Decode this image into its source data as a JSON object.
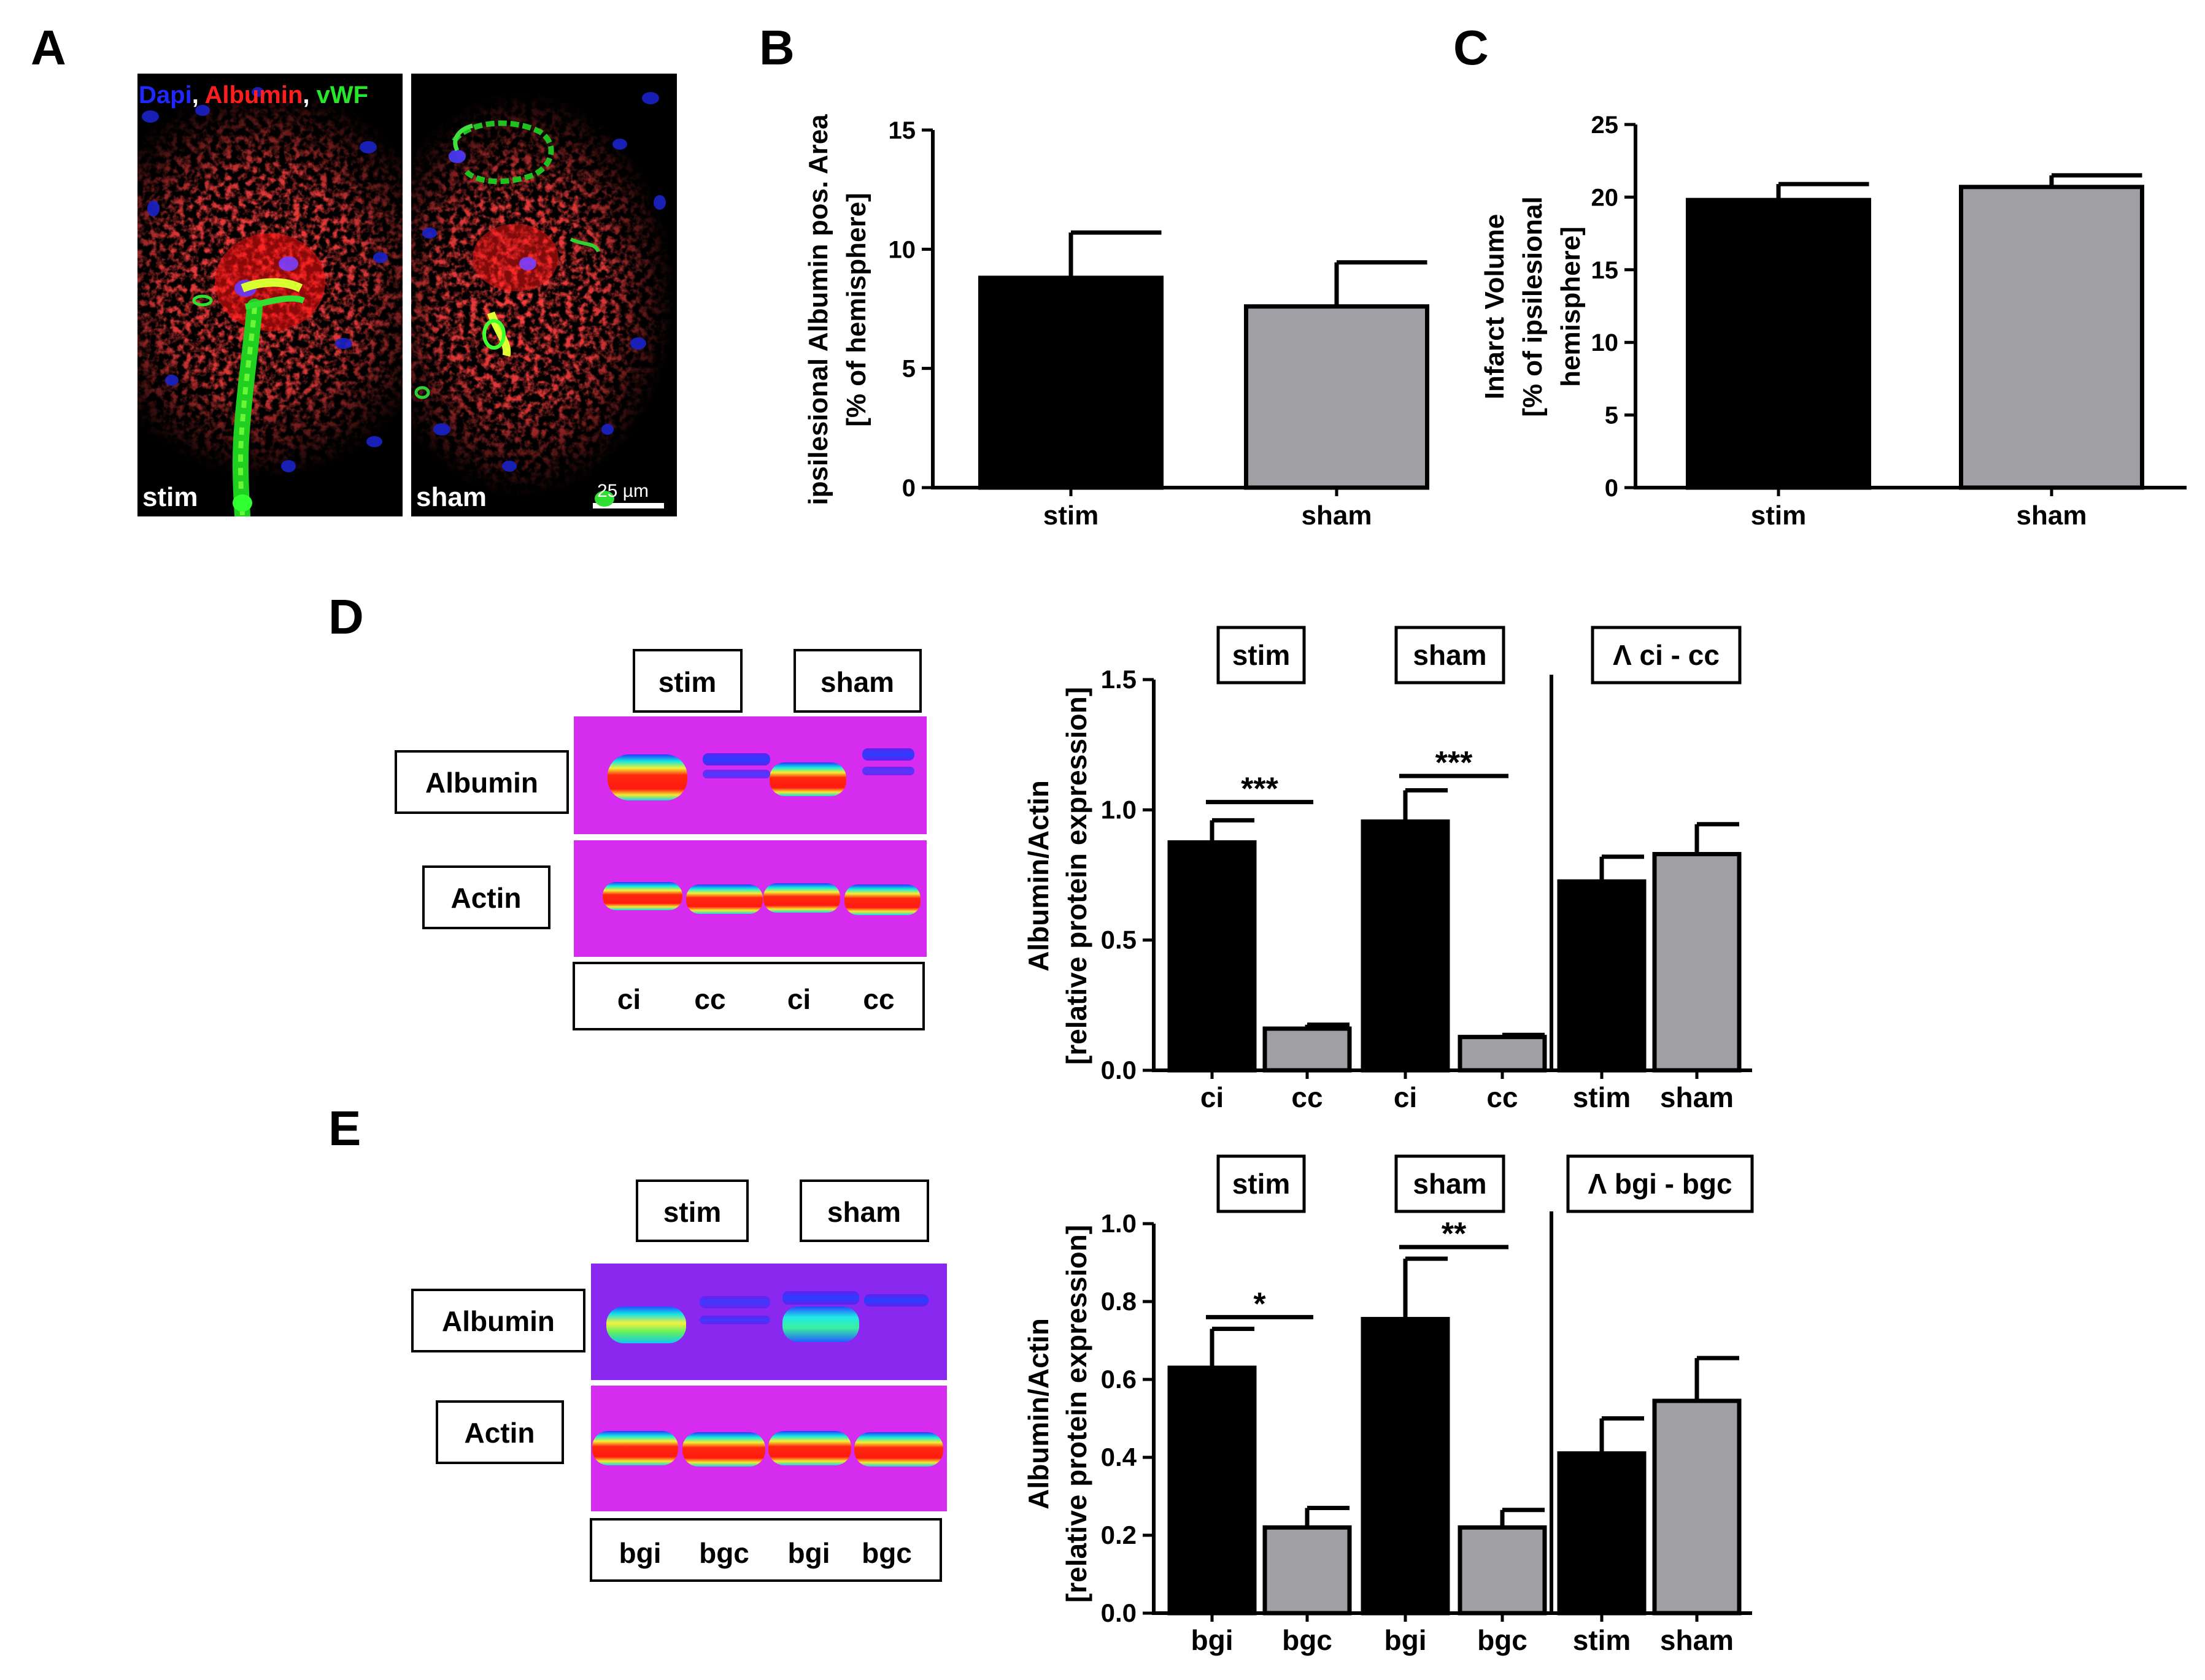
{
  "panel_letters": {
    "A": "A",
    "B": "B",
    "C": "C",
    "D": "D",
    "E": "E"
  },
  "panelA": {
    "legend": [
      {
        "text": "Dapi",
        "color": "#1e28ff"
      },
      {
        "text": ",",
        "color": "#ffffff"
      },
      {
        "text": " Albumin",
        "color": "#ff1e1e"
      },
      {
        "text": ",",
        "color": "#ffffff"
      },
      {
        "text": " vWF",
        "color": "#28e628"
      }
    ],
    "left_label": "stim",
    "right_label": "sham",
    "scale_bar": "25 µm"
  },
  "blotD": {
    "groups": [
      "stim",
      "sham"
    ],
    "rows": [
      "Albumin",
      "Actin"
    ],
    "lanes": [
      "ci",
      "cc",
      "ci",
      "cc"
    ]
  },
  "blotE": {
    "groups": [
      "stim",
      "sham"
    ],
    "rows": [
      "Albumin",
      "Actin"
    ],
    "lanes": [
      "bgi",
      "bgc",
      "bgi",
      "bgc"
    ]
  },
  "chart_data": [
    {
      "id": "B",
      "type": "bar",
      "categories": [
        "stim",
        "sham"
      ],
      "values": [
        8.8,
        7.6
      ],
      "errors": [
        1.9,
        1.85
      ],
      "colors": [
        "#000000",
        "#a0a0a4"
      ],
      "ylabel_lines": [
        "ipsilesional Albumin pos. Area",
        "[% of hemisphere]"
      ],
      "ylim": [
        0,
        15
      ],
      "yticks": [
        0,
        5,
        10,
        15
      ],
      "yticklabels": [
        "0",
        "5",
        "10",
        "15"
      ]
    },
    {
      "id": "C",
      "type": "bar",
      "categories": [
        "stim",
        "sham"
      ],
      "values": [
        19.8,
        20.7
      ],
      "errors": [
        1.1,
        0.8
      ],
      "colors": [
        "#000000",
        "#a0a0a4"
      ],
      "ylabel_lines": [
        "Infarct Volume",
        "[% of ipsilesional",
        "hemisphere]"
      ],
      "ylim": [
        0,
        25
      ],
      "yticks": [
        0,
        5,
        10,
        15,
        20,
        25
      ],
      "yticklabels": [
        "0",
        "5",
        "10",
        "15",
        "20",
        "25"
      ]
    },
    {
      "id": "D",
      "type": "bar",
      "categories": [
        "ci",
        "cc",
        "ci",
        "cc",
        "stim",
        "sham"
      ],
      "values": [
        0.875,
        0.16,
        0.955,
        0.128,
        0.725,
        0.83
      ],
      "errors": [
        0.085,
        0.015,
        0.12,
        0.008,
        0.095,
        0.115
      ],
      "colors": [
        "#000000",
        "#a0a0a4",
        "#000000",
        "#a0a0a4",
        "#000000",
        "#a0a0a4"
      ],
      "group_labels": [
        "stim",
        "sham",
        "Λ ci - cc"
      ],
      "significance": [
        {
          "between": [
            0,
            1
          ],
          "label": "***",
          "y": 1.03
        },
        {
          "between": [
            2,
            3
          ],
          "label": "***",
          "y": 1.13
        }
      ],
      "ylabel_lines": [
        "Albumin/Actin",
        "[relative protein expression]"
      ],
      "ylim": [
        0,
        1.5
      ],
      "yticks": [
        0,
        0.5,
        1.0,
        1.5
      ],
      "yticklabels": [
        "0.0",
        "0.5",
        "1.0",
        "1.5"
      ]
    },
    {
      "id": "E",
      "type": "bar",
      "categories": [
        "bgi",
        "bgc",
        "bgi",
        "bgc",
        "stim",
        "sham"
      ],
      "values": [
        0.63,
        0.22,
        0.755,
        0.22,
        0.41,
        0.545
      ],
      "errors": [
        0.1,
        0.05,
        0.155,
        0.045,
        0.09,
        0.11
      ],
      "colors": [
        "#000000",
        "#a0a0a4",
        "#000000",
        "#a0a0a4",
        "#000000",
        "#a0a0a4"
      ],
      "group_labels": [
        "stim",
        "sham",
        "Λ bgi - bgc"
      ],
      "significance": [
        {
          "between": [
            0,
            1
          ],
          "label": "*",
          "y": 0.76
        },
        {
          "between": [
            2,
            3
          ],
          "label": "**",
          "y": 0.94
        }
      ],
      "ylabel_lines": [
        "Albumin/Actin",
        "[relative protein expression]"
      ],
      "ylim": [
        0,
        1.0
      ],
      "yticks": [
        0,
        0.2,
        0.4,
        0.6,
        0.8,
        1.0
      ],
      "yticklabels": [
        "0.0",
        "0.2",
        "0.4",
        "0.6",
        "0.8",
        "1.0"
      ]
    }
  ]
}
